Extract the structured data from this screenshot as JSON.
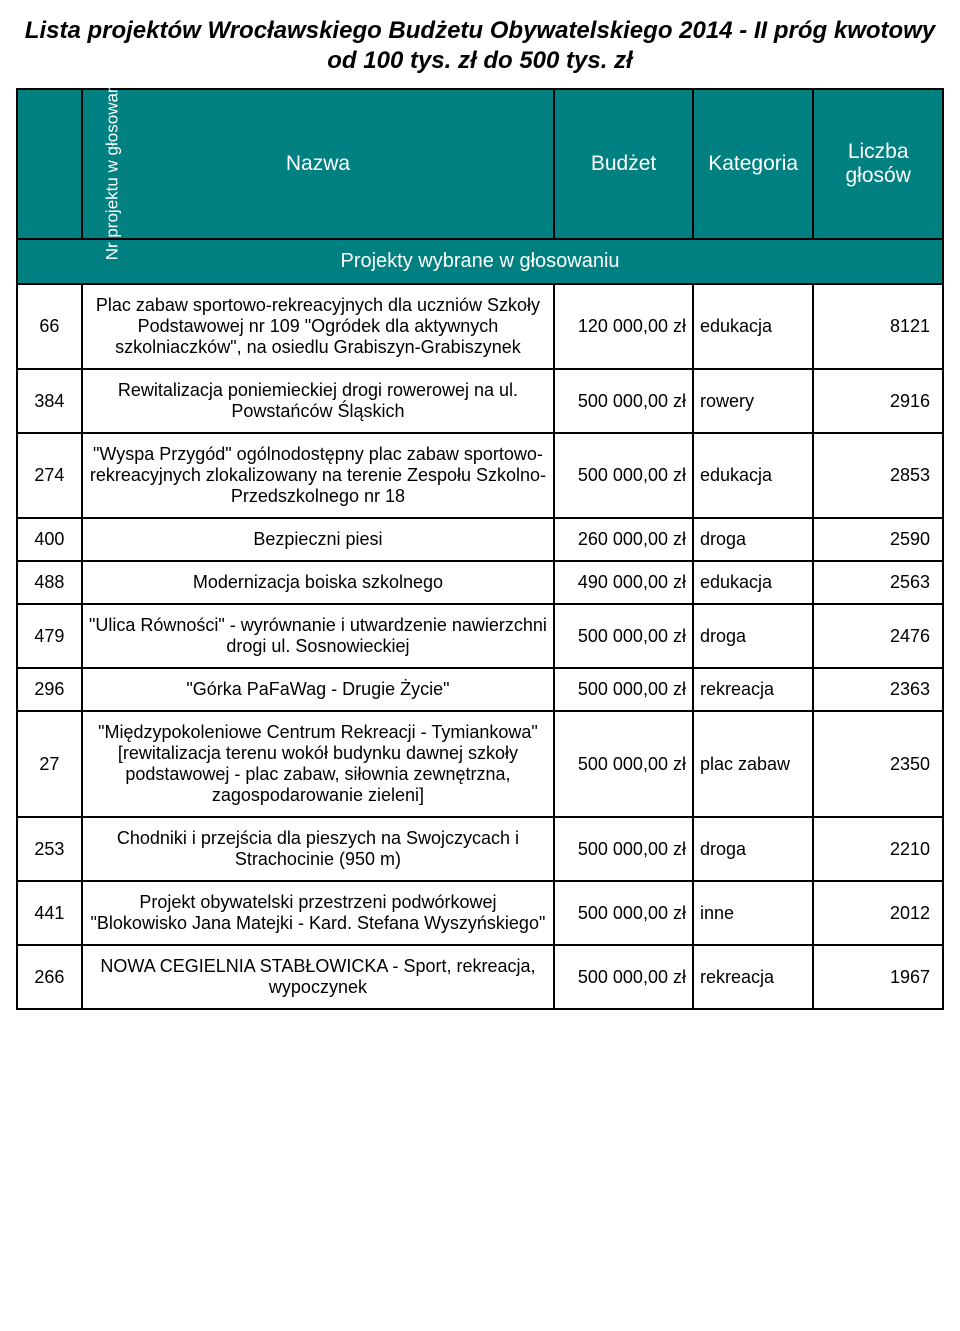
{
  "title": "Lista projektów Wrocławskiego Budżetu Obywatelskiego 2014 - II próg kwotowy od 100 tys. zł do 500 tys. zł",
  "headers": {
    "num": "Nr projektu w głosowaniu",
    "name": "Nazwa",
    "budget": "Budżet",
    "category": "Kategoria",
    "votes": "Liczba głosów"
  },
  "subheader": "Projekty wybrane w głosowaniu",
  "rows": [
    {
      "num": "66",
      "name": "Plac zabaw sportowo-rekreacyjnych dla uczniów Szkoły Podstawowej nr 109 \"Ogródek dla aktywnych szkolniaczków\", na osiedlu Grabiszyn-Grabiszynek",
      "budget": "120 000,00 zł",
      "category": "edukacja",
      "votes": "8121"
    },
    {
      "num": "384",
      "name": "Rewitalizacja poniemieckiej drogi rowerowej na ul. Powstańców Śląskich",
      "budget": "500 000,00 zł",
      "category": "rowery",
      "votes": "2916"
    },
    {
      "num": "274",
      "name": "\"Wyspa Przygód\" ogólnodostępny plac zabaw sportowo-rekreacyjnych zlokalizowany na terenie Zespołu Szkolno-Przedszkolnego nr 18",
      "budget": "500 000,00 zł",
      "category": "edukacja",
      "votes": "2853"
    },
    {
      "num": "400",
      "name": "Bezpieczni piesi",
      "budget": "260 000,00 zł",
      "category": "droga",
      "votes": "2590"
    },
    {
      "num": "488",
      "name": "Modernizacja boiska szkolnego",
      "budget": "490 000,00 zł",
      "category": "edukacja",
      "votes": "2563"
    },
    {
      "num": "479",
      "name": "\"Ulica Równości\" - wyrównanie i utwardzenie nawierzchni drogi ul. Sosnowieckiej",
      "budget": "500 000,00 zł",
      "category": "droga",
      "votes": "2476"
    },
    {
      "num": "296",
      "name": "\"Górka PaFaWag - Drugie Życie\"",
      "budget": "500 000,00 zł",
      "category": "rekreacja",
      "votes": "2363"
    },
    {
      "num": "27",
      "name": "\"Międzypokoleniowe Centrum Rekreacji - Tymiankowa\" [rewitalizacja terenu wokół budynku dawnej szkoły podstawowej - plac zabaw, siłownia zewnętrzna, zagospodarowanie zieleni]",
      "budget": "500 000,00 zł",
      "category": "plac zabaw",
      "votes": "2350"
    },
    {
      "num": "253",
      "name": "Chodniki i przejścia dla pieszych na Swojczycach i Strachocinie (950 m)",
      "budget": "500 000,00 zł",
      "category": "droga",
      "votes": "2210"
    },
    {
      "num": "441",
      "name": "Projekt obywatelski przestrzeni podwórkowej \"Blokowisko Jana Matejki - Kard. Stefana Wyszyńskiego\"",
      "budget": "500 000,00 zł",
      "category": "inne",
      "votes": "2012"
    },
    {
      "num": "266",
      "name": "NOWA CEGIELNIA STABŁOWICKA - Sport, rekreacja, wypoczynek",
      "budget": "500 000,00 zł",
      "category": "rekreacja",
      "votes": "1967"
    }
  ],
  "colors": {
    "header_bg": "#008080",
    "header_fg": "#ffffff",
    "border": "#000000",
    "page_bg": "#ffffff"
  }
}
